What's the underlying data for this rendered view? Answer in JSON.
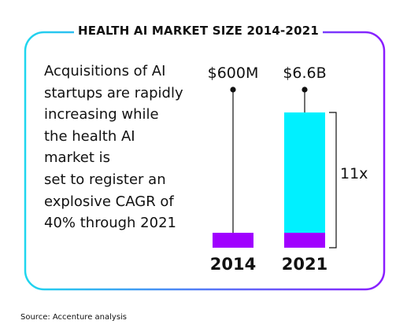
{
  "title": "HEALTH AI MARKET SIZE 2014-2021",
  "description_lines": [
    "Acquisitions of AI",
    "startups are rapidly",
    "increasing while",
    "the health AI",
    "market is",
    "set to register an",
    "explosive CAGR of",
    "40% through 2021"
  ],
  "source": "Source: Accenture analysis",
  "colors": {
    "cyan": "#00f0ff",
    "purple": "#a000ff",
    "frame_gradient_start": "#1fd6ee",
    "frame_gradient_end": "#8a1dff"
  },
  "chart_data": {
    "type": "bar",
    "categories": [
      "2014",
      "2021"
    ],
    "values_usd": [
      600000000,
      6600000000
    ],
    "value_labels": [
      "$600M",
      "$6.6B"
    ],
    "ratio_label": "11x"
  }
}
